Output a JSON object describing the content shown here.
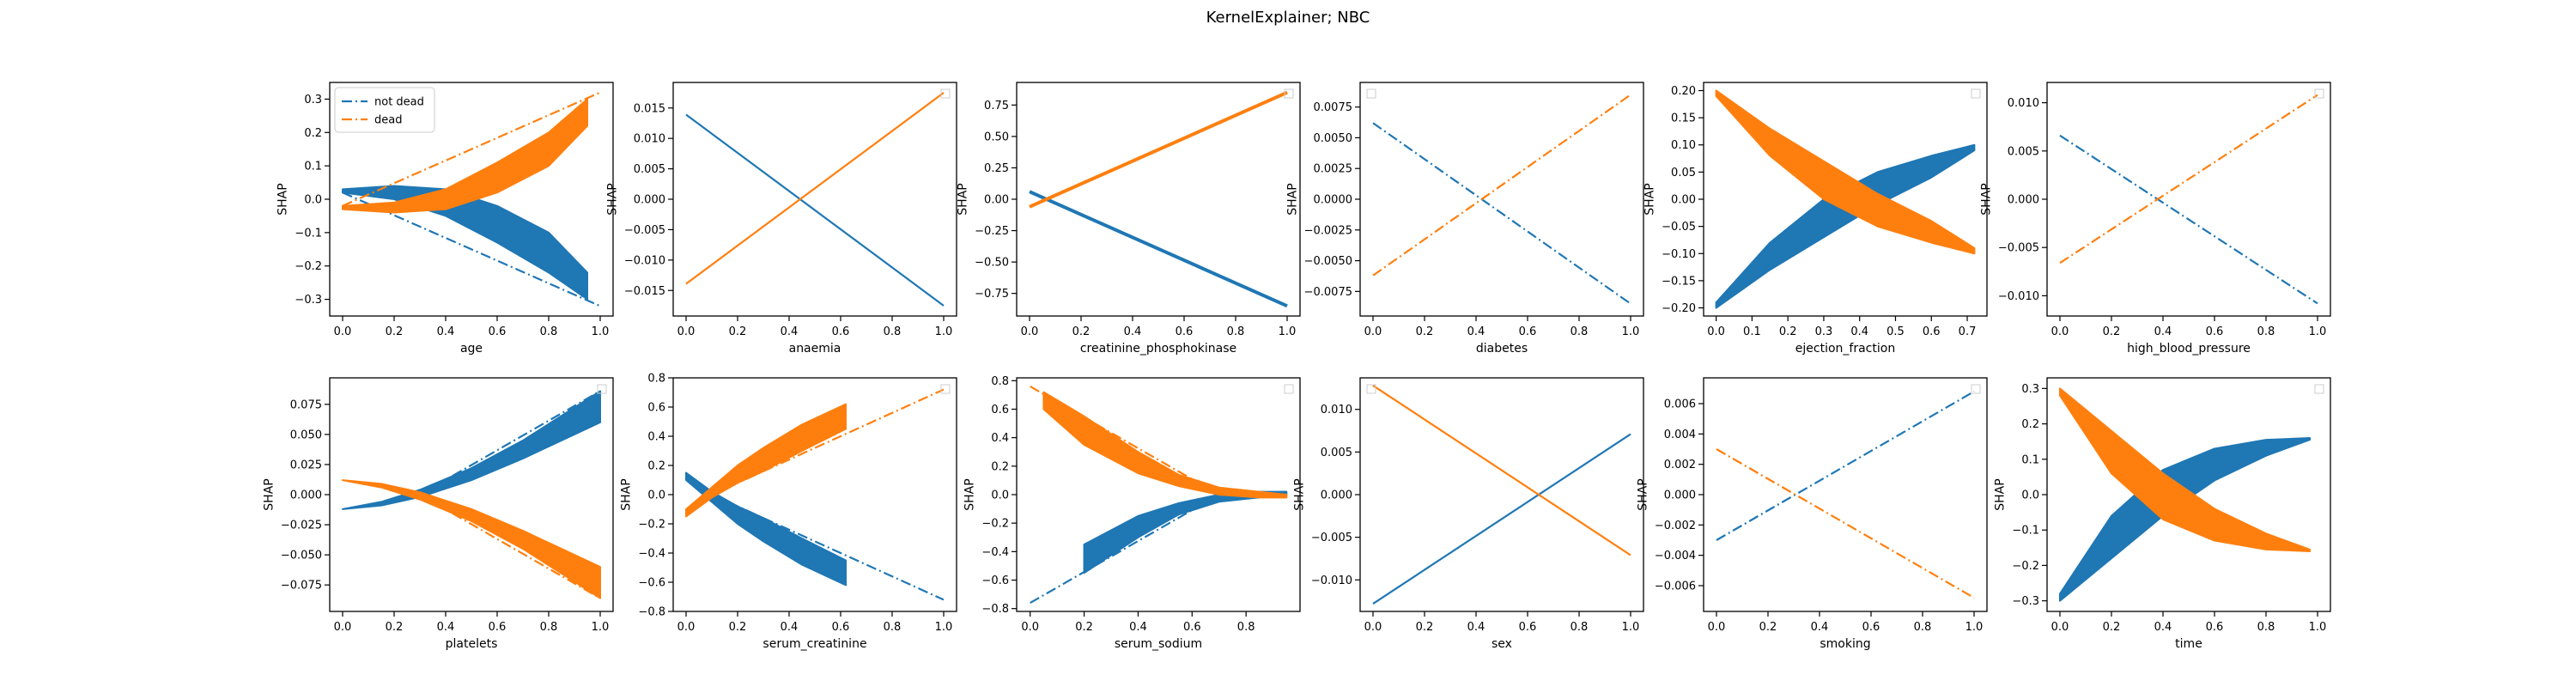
{
  "suptitle": "KernelExplainer; NBC",
  "legend": {
    "entries": [
      {
        "label": "not dead",
        "color": "#1f77b4",
        "icon": "dashdot-line"
      },
      {
        "label": "dead",
        "color": "#ff7f0e",
        "icon": "dashdot-line"
      }
    ]
  },
  "chart_data": [
    {
      "type": "line",
      "xlabel": "age",
      "ylabel": "SHAP",
      "xlim": [
        -0.05,
        1.05
      ],
      "ylim": [
        -0.35,
        0.35
      ],
      "xticks": [
        0.0,
        0.2,
        0.4,
        0.6,
        0.8,
        1.0
      ],
      "yticks": [
        -0.3,
        -0.2,
        -0.1,
        0.0,
        0.1,
        0.2,
        0.3
      ],
      "ydec": 1,
      "legend_visible": true,
      "grid": false,
      "series": [
        {
          "name": "not dead",
          "color": "#1f77b4",
          "style": "band",
          "x": [
            0,
            0.2,
            0.4,
            0.6,
            0.8,
            0.95
          ],
          "upper": [
            0.03,
            0.04,
            0.03,
            -0.02,
            -0.1,
            -0.22
          ],
          "lower": [
            0.02,
            0.0,
            -0.05,
            -0.13,
            -0.22,
            -0.3
          ]
        },
        {
          "name": "not dead",
          "color": "#1f77b4",
          "style": "dashdot",
          "x": [
            0,
            1
          ],
          "y": [
            0.02,
            -0.32
          ]
        },
        {
          "name": "dead",
          "color": "#ff7f0e",
          "style": "band",
          "x": [
            0,
            0.2,
            0.4,
            0.6,
            0.8,
            0.95
          ],
          "upper": [
            -0.02,
            -0.01,
            0.03,
            0.11,
            0.2,
            0.3
          ],
          "lower": [
            -0.03,
            -0.04,
            -0.03,
            0.02,
            0.1,
            0.22
          ]
        },
        {
          "name": "dead",
          "color": "#ff7f0e",
          "style": "dashdot",
          "x": [
            0,
            1
          ],
          "y": [
            -0.02,
            0.32
          ]
        }
      ]
    },
    {
      "type": "line",
      "xlabel": "anaemia",
      "ylabel": "SHAP",
      "xlim": [
        -0.05,
        1.05
      ],
      "ylim": [
        -0.0192,
        0.0192
      ],
      "xticks": [
        0.0,
        0.2,
        0.4,
        0.6,
        0.8,
        1.0
      ],
      "yticks": [
        -0.015,
        -0.01,
        -0.005,
        0.0,
        0.005,
        0.01,
        0.015
      ],
      "ydec": 3,
      "legend_visible": false,
      "grid": false,
      "series": [
        {
          "name": "not dead",
          "color": "#1f77b4",
          "style": "solid",
          "x": [
            0,
            1
          ],
          "y": [
            0.0139,
            -0.0175
          ]
        },
        {
          "name": "dead",
          "color": "#ff7f0e",
          "style": "solid",
          "x": [
            0,
            1
          ],
          "y": [
            -0.0139,
            0.0175
          ]
        }
      ]
    },
    {
      "type": "line",
      "xlabel": "creatinine_phosphokinase",
      "ylabel": "SHAP",
      "xlim": [
        -0.05,
        1.05
      ],
      "ylim": [
        -0.93,
        0.93
      ],
      "xticks": [
        0.0,
        0.2,
        0.4,
        0.6,
        0.8,
        1.0
      ],
      "yticks": [
        -0.75,
        -0.5,
        -0.25,
        0.0,
        0.25,
        0.5,
        0.75
      ],
      "ydec": 2,
      "legend_visible": false,
      "grid": false,
      "series": [
        {
          "name": "not dead",
          "color": "#1f77b4",
          "style": "thick",
          "x": [
            0,
            1
          ],
          "y": [
            0.06,
            -0.85
          ]
        },
        {
          "name": "dead",
          "color": "#ff7f0e",
          "style": "thick",
          "x": [
            0,
            1
          ],
          "y": [
            -0.06,
            0.85
          ]
        }
      ]
    },
    {
      "type": "line",
      "xlabel": "diabetes",
      "ylabel": "SHAP",
      "xlim": [
        -0.05,
        1.05
      ],
      "ylim": [
        -0.0095,
        0.0095
      ],
      "xticks": [
        0.0,
        0.2,
        0.4,
        0.6,
        0.8,
        1.0
      ],
      "yticks": [
        -0.0075,
        -0.005,
        -0.0025,
        0.0,
        0.0025,
        0.005,
        0.0075
      ],
      "ydec": 4,
      "legend_visible": false,
      "grid": false,
      "series": [
        {
          "name": "not dead",
          "color": "#1f77b4",
          "style": "dashdot",
          "x": [
            0,
            1
          ],
          "y": [
            0.0062,
            -0.0085
          ]
        },
        {
          "name": "dead",
          "color": "#ff7f0e",
          "style": "dashdot",
          "x": [
            0,
            1
          ],
          "y": [
            -0.0062,
            0.0085
          ]
        }
      ]
    },
    {
      "type": "line",
      "xlabel": "ejection_fraction",
      "ylabel": "SHAP",
      "xlim": [
        -0.035,
        0.755
      ],
      "ylim": [
        -0.215,
        0.215
      ],
      "xticks": [
        0.0,
        0.1,
        0.2,
        0.3,
        0.4,
        0.5,
        0.6,
        0.7
      ],
      "yticks": [
        -0.2,
        -0.15,
        -0.1,
        -0.05,
        0.0,
        0.05,
        0.1,
        0.15,
        0.2
      ],
      "ydec": 2,
      "legend_visible": false,
      "grid": false,
      "series": [
        {
          "name": "not dead",
          "color": "#1f77b4",
          "style": "band",
          "x": [
            0,
            0.15,
            0.3,
            0.45,
            0.6,
            0.72
          ],
          "upper": [
            -0.19,
            -0.08,
            0.0,
            0.05,
            0.08,
            0.1
          ],
          "lower": [
            -0.2,
            -0.13,
            -0.07,
            -0.01,
            0.04,
            0.09
          ]
        },
        {
          "name": "dead",
          "color": "#ff7f0e",
          "style": "band",
          "x": [
            0,
            0.15,
            0.3,
            0.45,
            0.6,
            0.72
          ],
          "upper": [
            0.2,
            0.13,
            0.07,
            0.01,
            -0.04,
            -0.09
          ],
          "lower": [
            0.19,
            0.08,
            0.0,
            -0.05,
            -0.08,
            -0.1
          ]
        }
      ]
    },
    {
      "type": "line",
      "xlabel": "high_blood_pressure",
      "ylabel": "SHAP",
      "xlim": [
        -0.05,
        1.05
      ],
      "ylim": [
        -0.0121,
        0.0121
      ],
      "xticks": [
        0.0,
        0.2,
        0.4,
        0.6,
        0.8,
        1.0
      ],
      "yticks": [
        -0.01,
        -0.005,
        0.0,
        0.005,
        0.01
      ],
      "ydec": 3,
      "legend_visible": false,
      "grid": false,
      "series": [
        {
          "name": "not dead",
          "color": "#1f77b4",
          "style": "dashdot",
          "x": [
            0,
            1
          ],
          "y": [
            0.0066,
            -0.0108
          ]
        },
        {
          "name": "dead",
          "color": "#ff7f0e",
          "style": "dashdot",
          "x": [
            0,
            1
          ],
          "y": [
            -0.0066,
            0.0108
          ]
        }
      ]
    },
    {
      "type": "line",
      "xlabel": "platelets",
      "ylabel": "SHAP",
      "xlim": [
        -0.05,
        1.05
      ],
      "ylim": [
        -0.097,
        0.097
      ],
      "xticks": [
        0.0,
        0.2,
        0.4,
        0.6,
        0.8,
        1.0
      ],
      "yticks": [
        -0.075,
        -0.05,
        -0.025,
        0.0,
        0.025,
        0.05,
        0.075
      ],
      "ydec": 3,
      "legend_visible": false,
      "grid": false,
      "series": [
        {
          "name": "not dead",
          "color": "#1f77b4",
          "style": "band",
          "x": [
            0,
            0.15,
            0.3,
            0.5,
            0.7,
            1.0
          ],
          "upper": [
            -0.012,
            -0.006,
            0.004,
            0.022,
            0.045,
            0.086
          ],
          "lower": [
            -0.012,
            -0.009,
            -0.002,
            0.012,
            0.03,
            0.06
          ]
        },
        {
          "name": "not dead",
          "color": "#1f77b4",
          "style": "dashdot",
          "x": [
            0.3,
            1.0
          ],
          "y": [
            0.0,
            0.086
          ]
        },
        {
          "name": "dead",
          "color": "#ff7f0e",
          "style": "band",
          "x": [
            0,
            0.15,
            0.3,
            0.5,
            0.7,
            1.0
          ],
          "upper": [
            0.012,
            0.009,
            0.002,
            -0.012,
            -0.03,
            -0.06
          ],
          "lower": [
            0.012,
            0.006,
            -0.004,
            -0.022,
            -0.045,
            -0.086
          ]
        },
        {
          "name": "dead",
          "color": "#ff7f0e",
          "style": "dashdot",
          "x": [
            0.3,
            1.0
          ],
          "y": [
            0.0,
            -0.086
          ]
        }
      ]
    },
    {
      "type": "line",
      "xlabel": "serum_creatinine",
      "ylabel": "SHAP",
      "xlim": [
        -0.05,
        1.05
      ],
      "ylim": [
        -0.8,
        0.8
      ],
      "xticks": [
        0.0,
        0.2,
        0.4,
        0.6,
        0.8,
        1.0
      ],
      "yticks": [
        -0.8,
        -0.6,
        -0.4,
        -0.2,
        0.0,
        0.2,
        0.4,
        0.6,
        0.8
      ],
      "ydec": 1,
      "legend_visible": false,
      "grid": false,
      "series": [
        {
          "name": "not dead",
          "color": "#1f77b4",
          "style": "band",
          "x": [
            0,
            0.1,
            0.2,
            0.3,
            0.45,
            0.62
          ],
          "upper": [
            0.15,
            0.02,
            -0.08,
            -0.16,
            -0.3,
            -0.45
          ],
          "lower": [
            0.1,
            -0.05,
            -0.2,
            -0.32,
            -0.48,
            -0.62
          ]
        },
        {
          "name": "not dead",
          "color": "#1f77b4",
          "style": "dashdot",
          "x": [
            0.1,
            1.0
          ],
          "y": [
            0.0,
            -0.72
          ]
        },
        {
          "name": "dead",
          "color": "#ff7f0e",
          "style": "band",
          "x": [
            0,
            0.1,
            0.2,
            0.3,
            0.45,
            0.62
          ],
          "upper": [
            -0.1,
            0.05,
            0.2,
            0.32,
            0.48,
            0.62
          ],
          "lower": [
            -0.15,
            -0.02,
            0.08,
            0.16,
            0.3,
            0.45
          ]
        },
        {
          "name": "dead",
          "color": "#ff7f0e",
          "style": "dashdot",
          "x": [
            0.1,
            1.0
          ],
          "y": [
            0.0,
            0.72
          ]
        }
      ]
    },
    {
      "type": "line",
      "xlabel": "serum_sodium",
      "ylabel": "SHAP",
      "xlim": [
        -0.05,
        1.0
      ],
      "ylim": [
        -0.82,
        0.82
      ],
      "xticks": [
        0.0,
        0.2,
        0.4,
        0.6,
        0.8
      ],
      "yticks": [
        -0.8,
        -0.6,
        -0.4,
        -0.2,
        0.0,
        0.2,
        0.4,
        0.6,
        0.8
      ],
      "ydec": 1,
      "legend_visible": false,
      "grid": false,
      "series": [
        {
          "name": "not dead",
          "color": "#1f77b4",
          "style": "band",
          "x": [
            0.2,
            0.4,
            0.55,
            0.7,
            0.85,
            0.95
          ],
          "upper": [
            -0.35,
            -0.15,
            -0.06,
            0.0,
            0.02,
            0.02
          ],
          "lower": [
            -0.55,
            -0.3,
            -0.14,
            -0.05,
            -0.02,
            0.0
          ]
        },
        {
          "name": "not dead",
          "color": "#1f77b4",
          "style": "dashdot",
          "x": [
            0.0,
            0.7
          ],
          "y": [
            -0.76,
            0.0
          ]
        },
        {
          "name": "not dead",
          "color": "#1f77b4",
          "style": "dashdot",
          "x": [
            0.7,
            0.95
          ],
          "y": [
            0.0,
            0.02
          ]
        },
        {
          "name": "dead",
          "color": "#ff7f0e",
          "style": "band",
          "x": [
            0.05,
            0.2,
            0.4,
            0.55,
            0.7,
            0.85,
            0.95
          ],
          "upper": [
            0.72,
            0.55,
            0.3,
            0.14,
            0.05,
            0.02,
            0.0
          ],
          "lower": [
            0.6,
            0.35,
            0.15,
            0.06,
            0.0,
            -0.02,
            -0.02
          ]
        },
        {
          "name": "dead",
          "color": "#ff7f0e",
          "style": "dashdot",
          "x": [
            0.0,
            0.7
          ],
          "y": [
            0.76,
            0.0
          ]
        },
        {
          "name": "dead",
          "color": "#ff7f0e",
          "style": "dashdot",
          "x": [
            0.7,
            0.95
          ],
          "y": [
            0.0,
            -0.02
          ]
        }
      ]
    },
    {
      "type": "line",
      "xlabel": "sex",
      "ylabel": "SHAP",
      "xlim": [
        -0.05,
        1.05
      ],
      "ylim": [
        -0.0137,
        0.0137
      ],
      "xticks": [
        0.0,
        0.2,
        0.4,
        0.6,
        0.8,
        1.0
      ],
      "yticks": [
        -0.01,
        -0.005,
        0.0,
        0.005,
        0.01
      ],
      "ydec": 3,
      "legend_visible": false,
      "grid": false,
      "series": [
        {
          "name": "not dead",
          "color": "#1f77b4",
          "style": "solid",
          "x": [
            0,
            1
          ],
          "y": [
            -0.0128,
            0.0071
          ]
        },
        {
          "name": "dead",
          "color": "#ff7f0e",
          "style": "solid",
          "x": [
            0,
            1
          ],
          "y": [
            0.0128,
            -0.0071
          ]
        }
      ]
    },
    {
      "type": "line",
      "xlabel": "smoking",
      "ylabel": "SHAP",
      "xlim": [
        -0.05,
        1.05
      ],
      "ylim": [
        -0.0077,
        0.0077
      ],
      "xticks": [
        0.0,
        0.2,
        0.4,
        0.6,
        0.8,
        1.0
      ],
      "yticks": [
        -0.006,
        -0.004,
        -0.002,
        0.0,
        0.002,
        0.004,
        0.006
      ],
      "ydec": 3,
      "legend_visible": false,
      "grid": false,
      "series": [
        {
          "name": "not dead",
          "color": "#1f77b4",
          "style": "dashdot",
          "x": [
            0,
            1
          ],
          "y": [
            -0.003,
            0.0068
          ]
        },
        {
          "name": "dead",
          "color": "#ff7f0e",
          "style": "dashdot",
          "x": [
            0,
            1
          ],
          "y": [
            0.003,
            -0.0068
          ]
        }
      ]
    },
    {
      "type": "line",
      "xlabel": "time",
      "ylabel": "SHAP",
      "xlim": [
        -0.05,
        1.05
      ],
      "ylim": [
        -0.33,
        0.33
      ],
      "xticks": [
        0.0,
        0.2,
        0.4,
        0.6,
        0.8,
        1.0
      ],
      "yticks": [
        -0.3,
        -0.2,
        -0.1,
        0.0,
        0.1,
        0.2,
        0.3
      ],
      "ydec": 1,
      "legend_visible": false,
      "grid": false,
      "series": [
        {
          "name": "not dead",
          "color": "#1f77b4",
          "style": "band",
          "x": [
            0,
            0.2,
            0.4,
            0.6,
            0.8,
            0.97
          ],
          "upper": [
            -0.28,
            -0.06,
            0.07,
            0.13,
            0.155,
            0.16
          ],
          "lower": [
            -0.3,
            -0.18,
            -0.06,
            0.04,
            0.11,
            0.155
          ]
        },
        {
          "name": "dead",
          "color": "#ff7f0e",
          "style": "band",
          "x": [
            0,
            0.2,
            0.4,
            0.6,
            0.8,
            0.97
          ],
          "upper": [
            0.3,
            0.18,
            0.06,
            -0.04,
            -0.11,
            -0.155
          ],
          "lower": [
            0.28,
            0.06,
            -0.07,
            -0.13,
            -0.155,
            -0.16
          ]
        }
      ]
    }
  ]
}
